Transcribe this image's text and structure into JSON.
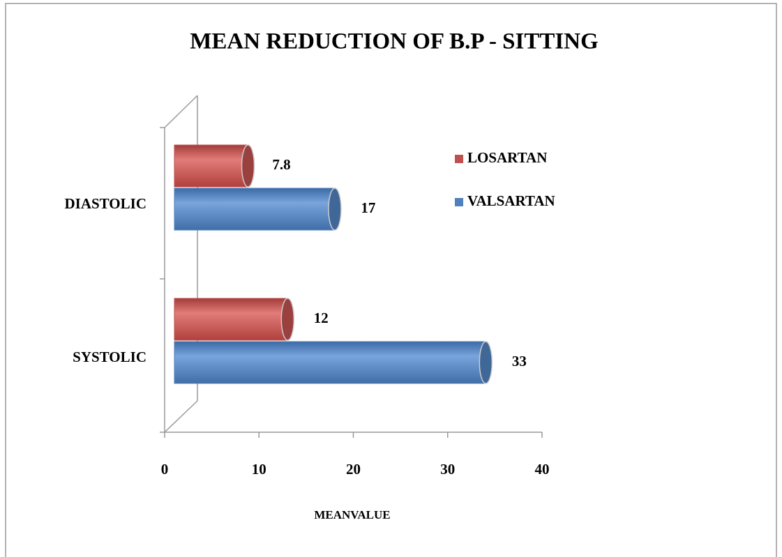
{
  "chart_data": {
    "type": "bar",
    "orientation": "horizontal",
    "title": "MEAN REDUCTION OF B.P - SITTING",
    "xlabel": "MEANVALUE",
    "categories": [
      "DIASTOLIC",
      "SYSTOLIC"
    ],
    "series": [
      {
        "name": "LOSARTAN",
        "color": "#c0504d",
        "values": [
          7.8,
          12
        ]
      },
      {
        "name": "VALSARTAN",
        "color": "#4f81bd",
        "values": [
          17,
          33
        ]
      }
    ],
    "xlim": [
      0,
      40
    ],
    "xticks": [
      0,
      10,
      20,
      30,
      40
    ],
    "legend": "right"
  }
}
